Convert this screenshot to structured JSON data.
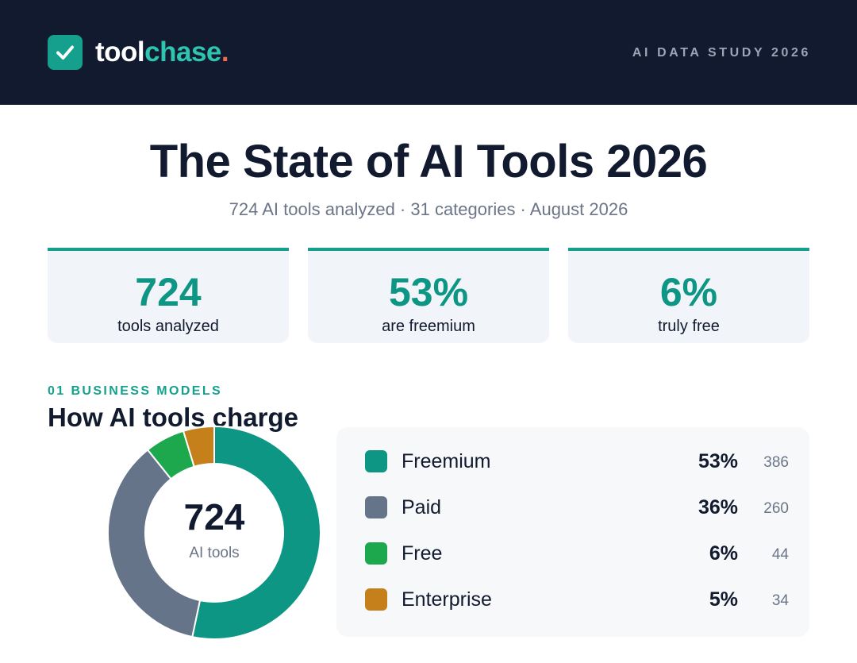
{
  "header": {
    "brand_part1": "tool",
    "brand_part2": "chase",
    "brand_part3": ".",
    "study_label": "AI DATA STUDY 2026",
    "logo_icon": "check-icon",
    "colors": {
      "background": "#111a2e",
      "logo": "#14a08c",
      "brand_accent": "#2ec4b0",
      "dot": "#ef6a4d"
    }
  },
  "title": "The State of AI Tools 2026",
  "subtitle": "724 AI tools analyzed · 31 categories · August 2026",
  "stats": [
    {
      "value": "724",
      "label": "tools analyzed"
    },
    {
      "value": "53%",
      "label": "are freemium"
    },
    {
      "value": "6%",
      "label": "truly free"
    }
  ],
  "section": {
    "label": "01 BUSINESS MODELS",
    "title": "How AI tools charge"
  },
  "chart_data": {
    "type": "pie",
    "variant": "donut",
    "center_value": "724",
    "center_label": "AI tools",
    "categories": [
      "Freemium",
      "Paid",
      "Free",
      "Enterprise"
    ],
    "values": [
      386,
      260,
      44,
      34
    ],
    "percent_labels": [
      "53%",
      "36%",
      "6%",
      "5%"
    ],
    "colors": [
      "#0e9684",
      "#66748a",
      "#1ea84e",
      "#c57f1b"
    ],
    "legend_position": "right"
  }
}
